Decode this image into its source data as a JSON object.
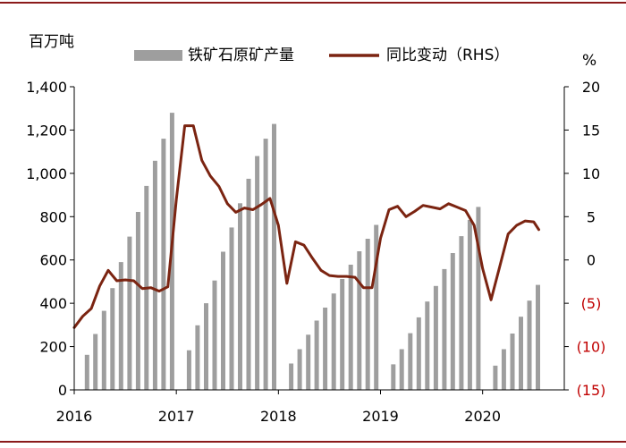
{
  "chart_data": {
    "type": "bar+line",
    "left_unit": "百万吨",
    "right_unit": "%",
    "legend": {
      "bar_label": "铁矿石原矿产量",
      "line_label": "同比变动（RHS）",
      "placement": "top"
    },
    "colors": {
      "bar": "#9e9e9e",
      "line": "#7b2411",
      "axis": "#000000",
      "negative_tick": "#c00000",
      "rule": "#8b1a1a"
    },
    "x_tick_labels": [
      "2016",
      "2017",
      "2018",
      "2019",
      "2020"
    ],
    "x_range_years": [
      2016.0,
      2020.8
    ],
    "y_left": {
      "ticks": [
        "0",
        "200",
        "400",
        "600",
        "800",
        "1,000",
        "1,200",
        "1,400"
      ],
      "range": [
        0,
        1400
      ]
    },
    "y_right": {
      "ticks": [
        "(15)",
        "(10)",
        "(5)",
        "0",
        "5",
        "10",
        "15",
        "20"
      ],
      "range": [
        -15,
        20
      ]
    },
    "bars": [
      {
        "t": 2016.125,
        "v": 162
      },
      {
        "t": 2016.208,
        "v": 258
      },
      {
        "t": 2016.292,
        "v": 365
      },
      {
        "t": 2016.375,
        "v": 470
      },
      {
        "t": 2016.458,
        "v": 590
      },
      {
        "t": 2016.542,
        "v": 708
      },
      {
        "t": 2016.625,
        "v": 822
      },
      {
        "t": 2016.708,
        "v": 942
      },
      {
        "t": 2016.792,
        "v": 1058
      },
      {
        "t": 2016.875,
        "v": 1160
      },
      {
        "t": 2016.958,
        "v": 1280
      },
      {
        "t": 2017.125,
        "v": 183
      },
      {
        "t": 2017.208,
        "v": 298
      },
      {
        "t": 2017.292,
        "v": 400
      },
      {
        "t": 2017.375,
        "v": 505
      },
      {
        "t": 2017.458,
        "v": 638
      },
      {
        "t": 2017.542,
        "v": 750
      },
      {
        "t": 2017.625,
        "v": 862
      },
      {
        "t": 2017.708,
        "v": 975
      },
      {
        "t": 2017.792,
        "v": 1080
      },
      {
        "t": 2017.875,
        "v": 1160
      },
      {
        "t": 2017.958,
        "v": 1228
      },
      {
        "t": 2018.125,
        "v": 122
      },
      {
        "t": 2018.208,
        "v": 188
      },
      {
        "t": 2018.292,
        "v": 255
      },
      {
        "t": 2018.375,
        "v": 320
      },
      {
        "t": 2018.458,
        "v": 380
      },
      {
        "t": 2018.542,
        "v": 445
      },
      {
        "t": 2018.625,
        "v": 512
      },
      {
        "t": 2018.708,
        "v": 578
      },
      {
        "t": 2018.792,
        "v": 640
      },
      {
        "t": 2018.875,
        "v": 698
      },
      {
        "t": 2018.958,
        "v": 762
      },
      {
        "t": 2019.125,
        "v": 118
      },
      {
        "t": 2019.208,
        "v": 188
      },
      {
        "t": 2019.292,
        "v": 262
      },
      {
        "t": 2019.375,
        "v": 335
      },
      {
        "t": 2019.458,
        "v": 408
      },
      {
        "t": 2019.542,
        "v": 480
      },
      {
        "t": 2019.625,
        "v": 558
      },
      {
        "t": 2019.708,
        "v": 632
      },
      {
        "t": 2019.792,
        "v": 710
      },
      {
        "t": 2019.875,
        "v": 785
      },
      {
        "t": 2019.958,
        "v": 845
      },
      {
        "t": 2020.125,
        "v": 112
      },
      {
        "t": 2020.208,
        "v": 188
      },
      {
        "t": 2020.292,
        "v": 260
      },
      {
        "t": 2020.375,
        "v": 338
      },
      {
        "t": 2020.458,
        "v": 412
      },
      {
        "t": 2020.542,
        "v": 485
      }
    ],
    "yoy_line": [
      {
        "t": 2016.0,
        "v": -7.8
      },
      {
        "t": 2016.083,
        "v": -6.5
      },
      {
        "t": 2016.167,
        "v": -5.6
      },
      {
        "t": 2016.25,
        "v": -3.0
      },
      {
        "t": 2016.333,
        "v": -1.2
      },
      {
        "t": 2016.417,
        "v": -2.4
      },
      {
        "t": 2016.5,
        "v": -2.3
      },
      {
        "t": 2016.583,
        "v": -2.4
      },
      {
        "t": 2016.667,
        "v": -3.3
      },
      {
        "t": 2016.75,
        "v": -3.2
      },
      {
        "t": 2016.833,
        "v": -3.6
      },
      {
        "t": 2016.917,
        "v": -3.1
      },
      {
        "t": 2017.0,
        "v": 7.0
      },
      {
        "t": 2017.083,
        "v": 15.5
      },
      {
        "t": 2017.167,
        "v": 15.5
      },
      {
        "t": 2017.25,
        "v": 11.5
      },
      {
        "t": 2017.333,
        "v": 9.7
      },
      {
        "t": 2017.417,
        "v": 8.5
      },
      {
        "t": 2017.5,
        "v": 6.5
      },
      {
        "t": 2017.583,
        "v": 5.5
      },
      {
        "t": 2017.667,
        "v": 6.0
      },
      {
        "t": 2017.75,
        "v": 5.8
      },
      {
        "t": 2017.833,
        "v": 6.4
      },
      {
        "t": 2017.917,
        "v": 7.1
      },
      {
        "t": 2018.0,
        "v": 4.0
      },
      {
        "t": 2018.083,
        "v": -2.7
      },
      {
        "t": 2018.167,
        "v": 2.1
      },
      {
        "t": 2018.25,
        "v": 1.7
      },
      {
        "t": 2018.333,
        "v": 0.2
      },
      {
        "t": 2018.417,
        "v": -1.2
      },
      {
        "t": 2018.5,
        "v": -1.8
      },
      {
        "t": 2018.583,
        "v": -1.9
      },
      {
        "t": 2018.667,
        "v": -1.9
      },
      {
        "t": 2018.75,
        "v": -2.0
      },
      {
        "t": 2018.833,
        "v": -3.2
      },
      {
        "t": 2018.917,
        "v": -3.2
      },
      {
        "t": 2019.0,
        "v": 2.5
      },
      {
        "t": 2019.083,
        "v": 5.8
      },
      {
        "t": 2019.167,
        "v": 6.2
      },
      {
        "t": 2019.25,
        "v": 5.0
      },
      {
        "t": 2019.333,
        "v": 5.6
      },
      {
        "t": 2019.417,
        "v": 6.3
      },
      {
        "t": 2019.5,
        "v": 6.1
      },
      {
        "t": 2019.583,
        "v": 5.9
      },
      {
        "t": 2019.667,
        "v": 6.5
      },
      {
        "t": 2019.75,
        "v": 6.1
      },
      {
        "t": 2019.833,
        "v": 5.7
      },
      {
        "t": 2019.917,
        "v": 4.0
      },
      {
        "t": 2020.0,
        "v": -1.0
      },
      {
        "t": 2020.083,
        "v": -4.6
      },
      {
        "t": 2020.167,
        "v": -0.8
      },
      {
        "t": 2020.25,
        "v": 3.0
      },
      {
        "t": 2020.333,
        "v": 4.0
      },
      {
        "t": 2020.417,
        "v": 4.5
      },
      {
        "t": 2020.5,
        "v": 4.4
      },
      {
        "t": 2020.55,
        "v": 3.5
      }
    ]
  }
}
